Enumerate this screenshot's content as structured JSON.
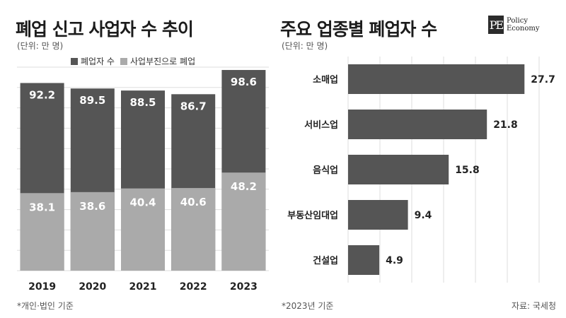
{
  "left_chart": {
    "title": "폐업 신고 사업자 수 추이",
    "unit": "(단위: 만 명)",
    "legend": [
      {
        "label": "폐업자 수",
        "color": "#555555"
      },
      {
        "label": "사업부진으로 폐업",
        "color": "#aaaaaa"
      }
    ],
    "note": "*개인·법인 기준"
  },
  "right_chart": {
    "title": "주요 업종별 폐업자 수",
    "unit": "(단위: 만 명)",
    "note": "*2023년 기준"
  },
  "logo": {
    "mark": "PE",
    "line1": "Policy",
    "line2": "Economy"
  },
  "source": "자료: 국세청",
  "colors": {
    "dark": "#555555",
    "light": "#aaaaaa",
    "grid": "#dddddd"
  },
  "chart_data": [
    {
      "type": "bar",
      "stacked": false,
      "overlapping": true,
      "categories": [
        "2019",
        "2020",
        "2021",
        "2022",
        "2023"
      ],
      "series": [
        {
          "name": "폐업자 수",
          "values": [
            92.2,
            89.5,
            88.5,
            86.7,
            98.6
          ]
        },
        {
          "name": "사업부진으로 폐업",
          "values": [
            38.1,
            38.6,
            40.4,
            40.6,
            48.2
          ]
        }
      ],
      "title": "폐업 신고 사업자 수 추이",
      "ylim": [
        0,
        100
      ],
      "grid": true,
      "legend_position": "top"
    },
    {
      "type": "bar",
      "orientation": "horizontal",
      "categories": [
        "소매업",
        "서비스업",
        "음식업",
        "부동산임대업",
        "건설업"
      ],
      "values": [
        27.7,
        21.8,
        15.8,
        9.4,
        4.9
      ],
      "title": "주요 업종별 폐업자 수",
      "xlim": [
        0,
        32
      ],
      "grid": true
    }
  ]
}
